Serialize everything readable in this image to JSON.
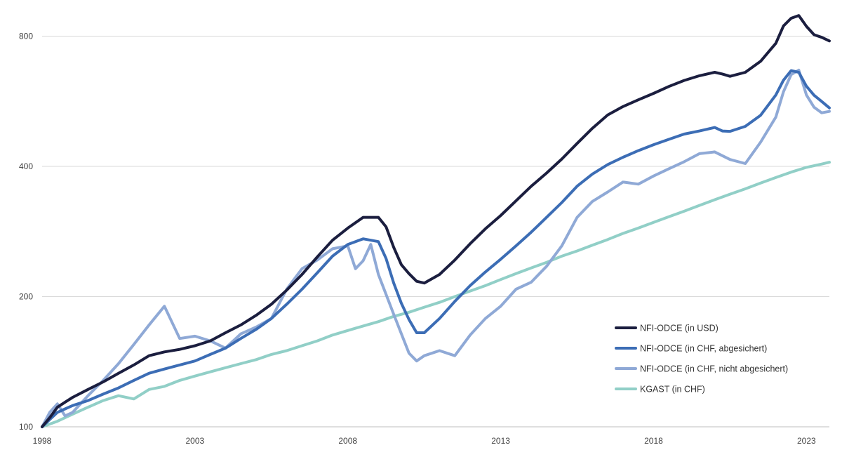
{
  "chart_data": {
    "type": "line",
    "title": "",
    "xlabel": "",
    "ylabel": "",
    "y_scale": "log",
    "ylim": [
      100,
      900
    ],
    "xlim": [
      1998.0,
      2023.75
    ],
    "grid": true,
    "legend_position": "bottom-right",
    "y_ticks": [
      {
        "value": 100,
        "label": "100"
      },
      {
        "value": 200,
        "label": "200"
      },
      {
        "value": 400,
        "label": "400"
      },
      {
        "value": 800,
        "label": "800"
      }
    ],
    "x_ticks": [
      {
        "value": 1998,
        "label": "1998"
      },
      {
        "value": 2003,
        "label": "2003"
      },
      {
        "value": 2008,
        "label": "2008"
      },
      {
        "value": 2013,
        "label": "2013"
      },
      {
        "value": 2018,
        "label": "2018"
      },
      {
        "value": 2023,
        "label": "2023"
      }
    ],
    "series": [
      {
        "name": "NFI-ODCE (in USD)",
        "color": "#1b1e3f",
        "points": [
          [
            1998.0,
            100
          ],
          [
            1998.25,
            105
          ],
          [
            1998.5,
            111
          ],
          [
            1998.75,
            114
          ],
          [
            1999.0,
            117
          ],
          [
            1999.5,
            122
          ],
          [
            2000.0,
            127
          ],
          [
            2000.5,
            133
          ],
          [
            2001.0,
            139
          ],
          [
            2001.5,
            146
          ],
          [
            2002.0,
            149
          ],
          [
            2002.5,
            151
          ],
          [
            2003.0,
            154
          ],
          [
            2003.5,
            158
          ],
          [
            2004.0,
            165
          ],
          [
            2004.5,
            172
          ],
          [
            2005.0,
            181
          ],
          [
            2005.5,
            192
          ],
          [
            2006.0,
            207
          ],
          [
            2006.5,
            225
          ],
          [
            2007.0,
            247
          ],
          [
            2007.5,
            270
          ],
          [
            2008.0,
            288
          ],
          [
            2008.5,
            305
          ],
          [
            2009.0,
            305
          ],
          [
            2009.25,
            290
          ],
          [
            2009.5,
            260
          ],
          [
            2009.75,
            237
          ],
          [
            2010.0,
            226
          ],
          [
            2010.25,
            217
          ],
          [
            2010.5,
            215
          ],
          [
            2011.0,
            225
          ],
          [
            2011.5,
            243
          ],
          [
            2012.0,
            265
          ],
          [
            2012.5,
            287
          ],
          [
            2013.0,
            308
          ],
          [
            2013.5,
            333
          ],
          [
            2014.0,
            360
          ],
          [
            2014.5,
            386
          ],
          [
            2015.0,
            416
          ],
          [
            2015.5,
            452
          ],
          [
            2016.0,
            490
          ],
          [
            2016.5,
            526
          ],
          [
            2017.0,
            550
          ],
          [
            2017.5,
            570
          ],
          [
            2018.0,
            590
          ],
          [
            2018.5,
            612
          ],
          [
            2019.0,
            632
          ],
          [
            2019.5,
            648
          ],
          [
            2020.0,
            660
          ],
          [
            2020.25,
            654
          ],
          [
            2020.5,
            646
          ],
          [
            2021.0,
            660
          ],
          [
            2021.5,
            700
          ],
          [
            2022.0,
            770
          ],
          [
            2022.25,
            845
          ],
          [
            2022.5,
            880
          ],
          [
            2022.75,
            893
          ],
          [
            2023.0,
            843
          ],
          [
            2023.25,
            806
          ],
          [
            2023.5,
            795
          ],
          [
            2023.75,
            780
          ]
        ]
      },
      {
        "name": "NFI-ODCE (in CHF, abgesichert)",
        "color": "#3c6db5",
        "points": [
          [
            1998.0,
            100
          ],
          [
            1998.25,
            104
          ],
          [
            1998.5,
            108
          ],
          [
            1998.75,
            110
          ],
          [
            1999.0,
            112
          ],
          [
            1999.5,
            115
          ],
          [
            2000.0,
            119
          ],
          [
            2000.5,
            123
          ],
          [
            2001.0,
            128
          ],
          [
            2001.5,
            133
          ],
          [
            2002.0,
            136
          ],
          [
            2002.5,
            139
          ],
          [
            2003.0,
            142
          ],
          [
            2003.5,
            147
          ],
          [
            2004.0,
            152
          ],
          [
            2004.5,
            160
          ],
          [
            2005.0,
            168
          ],
          [
            2005.5,
            178
          ],
          [
            2006.0,
            192
          ],
          [
            2006.5,
            208
          ],
          [
            2007.0,
            227
          ],
          [
            2007.5,
            248
          ],
          [
            2008.0,
            264
          ],
          [
            2008.5,
            272
          ],
          [
            2009.0,
            268
          ],
          [
            2009.25,
            245
          ],
          [
            2009.5,
            215
          ],
          [
            2009.75,
            193
          ],
          [
            2010.0,
            177
          ],
          [
            2010.25,
            165
          ],
          [
            2010.5,
            165
          ],
          [
            2011.0,
            178
          ],
          [
            2011.5,
            195
          ],
          [
            2012.0,
            212
          ],
          [
            2012.5,
            228
          ],
          [
            2013.0,
            244
          ],
          [
            2013.5,
            262
          ],
          [
            2014.0,
            282
          ],
          [
            2014.5,
            305
          ],
          [
            2015.0,
            330
          ],
          [
            2015.5,
            360
          ],
          [
            2016.0,
            384
          ],
          [
            2016.5,
            404
          ],
          [
            2017.0,
            420
          ],
          [
            2017.5,
            435
          ],
          [
            2018.0,
            449
          ],
          [
            2018.5,
            462
          ],
          [
            2019.0,
            475
          ],
          [
            2019.5,
            483
          ],
          [
            2020.0,
            492
          ],
          [
            2020.25,
            483
          ],
          [
            2020.5,
            482
          ],
          [
            2021.0,
            495
          ],
          [
            2021.5,
            525
          ],
          [
            2022.0,
            585
          ],
          [
            2022.25,
            633
          ],
          [
            2022.5,
            666
          ],
          [
            2022.75,
            660
          ],
          [
            2023.0,
            613
          ],
          [
            2023.25,
            584
          ],
          [
            2023.5,
            565
          ],
          [
            2023.75,
            546
          ]
        ]
      },
      {
        "name": "NFI-ODCE (in CHF, nicht abgesichert)",
        "color": "#8fa9d6",
        "points": [
          [
            1998.0,
            100
          ],
          [
            1998.25,
            108
          ],
          [
            1998.5,
            113
          ],
          [
            1998.75,
            106
          ],
          [
            1999.0,
            108
          ],
          [
            1999.5,
            118
          ],
          [
            2000.0,
            128
          ],
          [
            2000.5,
            140
          ],
          [
            2001.0,
            155
          ],
          [
            2001.5,
            172
          ],
          [
            2002.0,
            190
          ],
          [
            2002.5,
            160
          ],
          [
            2003.0,
            162
          ],
          [
            2003.5,
            158
          ],
          [
            2004.0,
            152
          ],
          [
            2004.5,
            164
          ],
          [
            2005.0,
            170
          ],
          [
            2005.5,
            178
          ],
          [
            2006.0,
            208
          ],
          [
            2006.5,
            232
          ],
          [
            2007.0,
            243
          ],
          [
            2007.5,
            258
          ],
          [
            2008.0,
            262
          ],
          [
            2008.25,
            232
          ],
          [
            2008.5,
            242
          ],
          [
            2008.75,
            264
          ],
          [
            2009.0,
            225
          ],
          [
            2009.5,
            182
          ],
          [
            2010.0,
            148
          ],
          [
            2010.25,
            142
          ],
          [
            2010.5,
            146
          ],
          [
            2011.0,
            150
          ],
          [
            2011.5,
            146
          ],
          [
            2012.0,
            163
          ],
          [
            2012.5,
            178
          ],
          [
            2013.0,
            190
          ],
          [
            2013.5,
            208
          ],
          [
            2014.0,
            216
          ],
          [
            2014.5,
            235
          ],
          [
            2015.0,
            262
          ],
          [
            2015.5,
            305
          ],
          [
            2016.0,
            332
          ],
          [
            2016.5,
            349
          ],
          [
            2017.0,
            368
          ],
          [
            2017.5,
            364
          ],
          [
            2018.0,
            380
          ],
          [
            2018.5,
            395
          ],
          [
            2019.0,
            410
          ],
          [
            2019.5,
            428
          ],
          [
            2020.0,
            432
          ],
          [
            2020.5,
            415
          ],
          [
            2021.0,
            406
          ],
          [
            2021.5,
            455
          ],
          [
            2022.0,
            520
          ],
          [
            2022.25,
            595
          ],
          [
            2022.5,
            652
          ],
          [
            2022.75,
            668
          ],
          [
            2023.0,
            585
          ],
          [
            2023.25,
            548
          ],
          [
            2023.5,
            532
          ],
          [
            2023.75,
            536
          ]
        ]
      },
      {
        "name": "KGAST (in CHF)",
        "color": "#91cfc7",
        "points": [
          [
            1998.0,
            100
          ],
          [
            1998.5,
            103
          ],
          [
            1999.0,
            107
          ],
          [
            1999.5,
            111
          ],
          [
            2000.0,
            115
          ],
          [
            2000.5,
            118
          ],
          [
            2001.0,
            116
          ],
          [
            2001.5,
            122
          ],
          [
            2002.0,
            124
          ],
          [
            2002.5,
            128
          ],
          [
            2003.0,
            131
          ],
          [
            2003.5,
            134
          ],
          [
            2004.0,
            137
          ],
          [
            2004.5,
            140
          ],
          [
            2005.0,
            143
          ],
          [
            2005.5,
            147
          ],
          [
            2006.0,
            150
          ],
          [
            2006.5,
            154
          ],
          [
            2007.0,
            158
          ],
          [
            2007.5,
            163
          ],
          [
            2008.0,
            167
          ],
          [
            2008.5,
            171
          ],
          [
            2009.0,
            175
          ],
          [
            2009.5,
            180
          ],
          [
            2010.0,
            184
          ],
          [
            2010.5,
            189
          ],
          [
            2011.0,
            194
          ],
          [
            2011.5,
            200
          ],
          [
            2012.0,
            206
          ],
          [
            2012.5,
            212
          ],
          [
            2013.0,
            219
          ],
          [
            2013.5,
            226
          ],
          [
            2014.0,
            233
          ],
          [
            2014.5,
            240
          ],
          [
            2015.0,
            248
          ],
          [
            2015.5,
            255
          ],
          [
            2016.0,
            263
          ],
          [
            2016.5,
            271
          ],
          [
            2017.0,
            280
          ],
          [
            2017.5,
            288
          ],
          [
            2018.0,
            297
          ],
          [
            2018.5,
            306
          ],
          [
            2019.0,
            315
          ],
          [
            2019.5,
            325
          ],
          [
            2020.0,
            335
          ],
          [
            2020.5,
            345
          ],
          [
            2021.0,
            355
          ],
          [
            2021.5,
            366
          ],
          [
            2022.0,
            377
          ],
          [
            2022.5,
            388
          ],
          [
            2023.0,
            398
          ],
          [
            2023.5,
            405
          ],
          [
            2023.75,
            409
          ]
        ]
      }
    ]
  }
}
